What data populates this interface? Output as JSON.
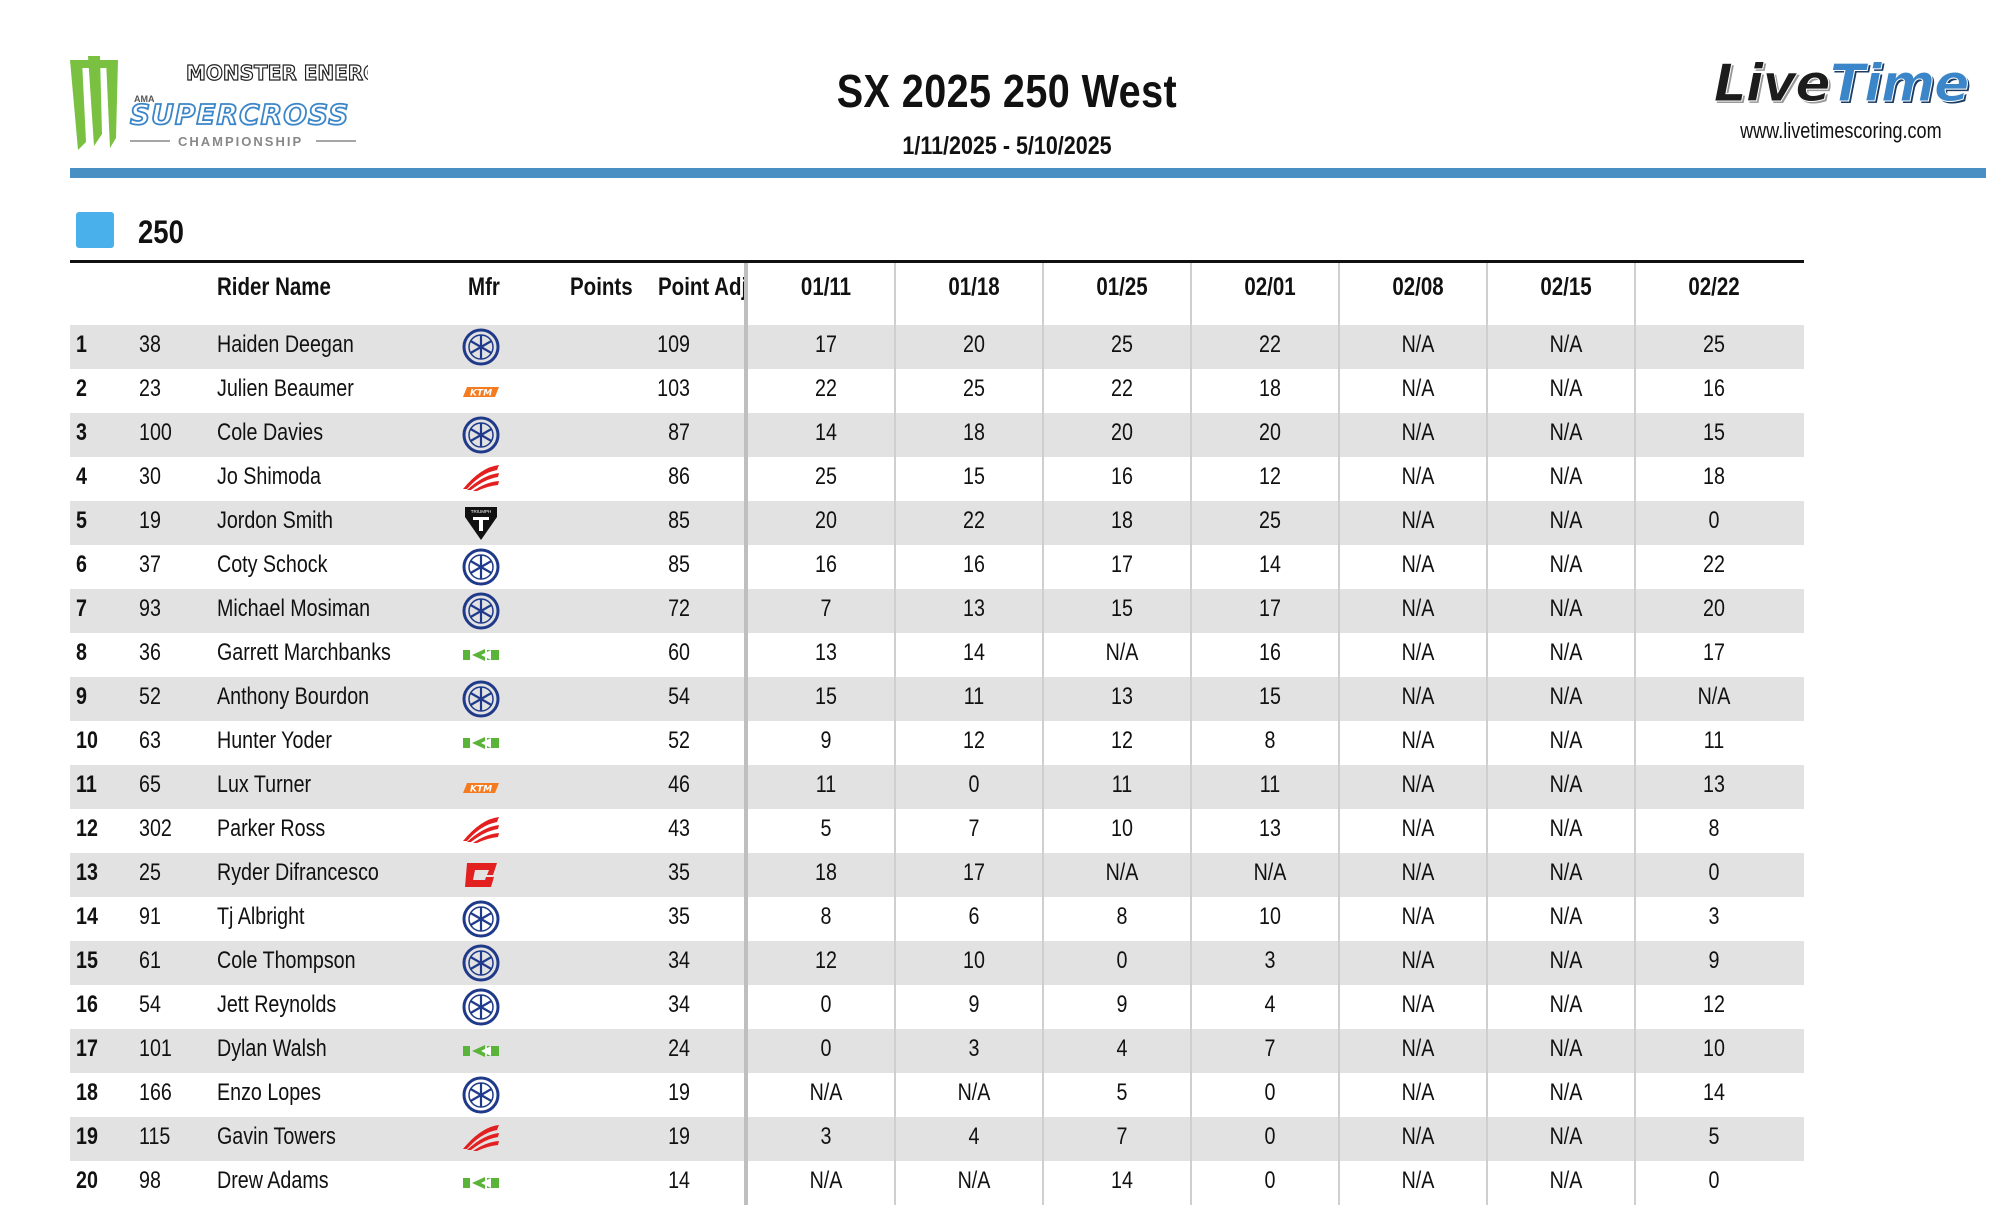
{
  "header": {
    "title": "SX 2025 250 West",
    "dates": "1/11/2025 - 5/10/2025",
    "left_logo": {
      "brand": "MONSTER ENERGY",
      "ama": "AMA",
      "series": "SUPERCROSS",
      "sub": "CHAMPIONSHIP",
      "claw_color": "#7ac142",
      "series_color": "#3b86c8"
    },
    "right_logo": {
      "live": "Live",
      "time": "Time",
      "url": "www.livetimescoring.com"
    },
    "rule_color": "#4a8fc4"
  },
  "class_tag": {
    "label": "250",
    "color": "#4ab0ec"
  },
  "table": {
    "columns": {
      "rider_name": "Rider Name",
      "mfr": "Mfr",
      "points": "Points",
      "point_adj": "Point Adj",
      "races": [
        "01/11",
        "01/18",
        "01/25",
        "02/01",
        "02/08",
        "02/15",
        "02/22"
      ]
    },
    "rows": [
      {
        "pos": "1",
        "num": "38",
        "name": "Haiden Deegan",
        "mfr": "yamaha-icon",
        "points": "109",
        "races": [
          "17",
          "20",
          "25",
          "22",
          "N/A",
          "N/A",
          "25"
        ]
      },
      {
        "pos": "2",
        "num": "23",
        "name": "Julien Beaumer",
        "mfr": "ktm-icon",
        "points": "103",
        "races": [
          "22",
          "25",
          "22",
          "18",
          "N/A",
          "N/A",
          "16"
        ]
      },
      {
        "pos": "3",
        "num": "100",
        "name": "Cole Davies",
        "mfr": "yamaha-icon",
        "points": "87",
        "races": [
          "14",
          "18",
          "20",
          "20",
          "N/A",
          "N/A",
          "15"
        ]
      },
      {
        "pos": "4",
        "num": "30",
        "name": "Jo Shimoda",
        "mfr": "honda-icon",
        "points": "86",
        "races": [
          "25",
          "15",
          "16",
          "12",
          "N/A",
          "N/A",
          "18"
        ]
      },
      {
        "pos": "5",
        "num": "19",
        "name": "Jordon Smith",
        "mfr": "triumph-icon",
        "points": "85",
        "races": [
          "20",
          "22",
          "18",
          "25",
          "N/A",
          "N/A",
          "0"
        ]
      },
      {
        "pos": "6",
        "num": "37",
        "name": "Coty Schock",
        "mfr": "yamaha-icon",
        "points": "85",
        "races": [
          "16",
          "16",
          "17",
          "14",
          "N/A",
          "N/A",
          "22"
        ]
      },
      {
        "pos": "7",
        "num": "93",
        "name": "Michael Mosiman",
        "mfr": "yamaha-icon",
        "points": "72",
        "races": [
          "7",
          "13",
          "15",
          "17",
          "N/A",
          "N/A",
          "20"
        ]
      },
      {
        "pos": "8",
        "num": "36",
        "name": "Garrett Marchbanks",
        "mfr": "kawasaki-icon",
        "points": "60",
        "races": [
          "13",
          "14",
          "N/A",
          "16",
          "N/A",
          "N/A",
          "17"
        ]
      },
      {
        "pos": "9",
        "num": "52",
        "name": "Anthony Bourdon",
        "mfr": "yamaha-icon",
        "points": "54",
        "races": [
          "15",
          "11",
          "13",
          "15",
          "N/A",
          "N/A",
          "N/A"
        ]
      },
      {
        "pos": "10",
        "num": "63",
        "name": "Hunter Yoder",
        "mfr": "kawasaki-icon",
        "points": "52",
        "races": [
          "9",
          "12",
          "12",
          "8",
          "N/A",
          "N/A",
          "11"
        ]
      },
      {
        "pos": "11",
        "num": "65",
        "name": "Lux Turner",
        "mfr": "ktm-icon",
        "points": "46",
        "races": [
          "11",
          "0",
          "11",
          "11",
          "N/A",
          "N/A",
          "13"
        ]
      },
      {
        "pos": "12",
        "num": "302",
        "name": "Parker Ross",
        "mfr": "honda-icon",
        "points": "43",
        "races": [
          "5",
          "7",
          "10",
          "13",
          "N/A",
          "N/A",
          "8"
        ]
      },
      {
        "pos": "13",
        "num": "25",
        "name": "Ryder Difrancesco",
        "mfr": "gasgas-icon",
        "points": "35",
        "races": [
          "18",
          "17",
          "N/A",
          "N/A",
          "N/A",
          "N/A",
          "0"
        ]
      },
      {
        "pos": "14",
        "num": "91",
        "name": "Tj Albright",
        "mfr": "yamaha-icon",
        "points": "35",
        "races": [
          "8",
          "6",
          "8",
          "10",
          "N/A",
          "N/A",
          "3"
        ]
      },
      {
        "pos": "15",
        "num": "61",
        "name": "Cole Thompson",
        "mfr": "yamaha-icon",
        "points": "34",
        "races": [
          "12",
          "10",
          "0",
          "3",
          "N/A",
          "N/A",
          "9"
        ]
      },
      {
        "pos": "16",
        "num": "54",
        "name": "Jett Reynolds",
        "mfr": "yamaha-icon",
        "points": "34",
        "races": [
          "0",
          "9",
          "9",
          "4",
          "N/A",
          "N/A",
          "12"
        ]
      },
      {
        "pos": "17",
        "num": "101",
        "name": "Dylan Walsh",
        "mfr": "kawasaki-icon",
        "points": "24",
        "races": [
          "0",
          "3",
          "4",
          "7",
          "N/A",
          "N/A",
          "10"
        ]
      },
      {
        "pos": "18",
        "num": "166",
        "name": "Enzo Lopes",
        "mfr": "yamaha-icon",
        "points": "19",
        "races": [
          "N/A",
          "N/A",
          "5",
          "0",
          "N/A",
          "N/A",
          "14"
        ]
      },
      {
        "pos": "19",
        "num": "115",
        "name": "Gavin Towers",
        "mfr": "honda-icon",
        "points": "19",
        "races": [
          "3",
          "4",
          "7",
          "0",
          "N/A",
          "N/A",
          "5"
        ]
      },
      {
        "pos": "20",
        "num": "98",
        "name": "Drew Adams",
        "mfr": "kawasaki-icon",
        "points": "14",
        "races": [
          "N/A",
          "N/A",
          "14",
          "0",
          "N/A",
          "N/A",
          "0"
        ]
      }
    ],
    "row_alt_color": "#e2e2e2"
  }
}
